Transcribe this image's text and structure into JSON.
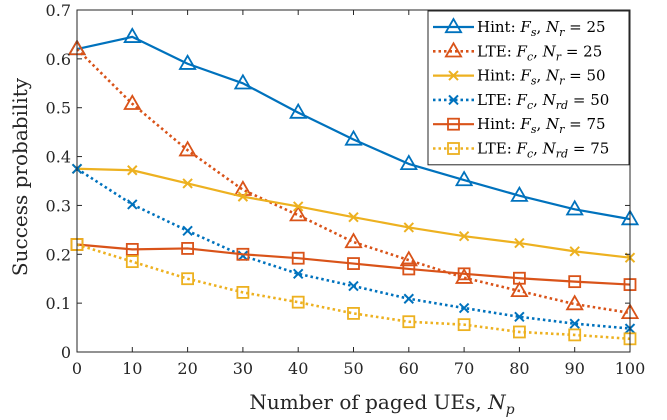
{
  "chart_data": {
    "type": "line",
    "xlabel": "Number of paged UEs, N_p",
    "ylabel": "Success probability",
    "xlim": [
      0,
      100
    ],
    "ylim": [
      0,
      0.7
    ],
    "x_ticks": [
      0,
      10,
      20,
      30,
      40,
      50,
      60,
      70,
      80,
      90,
      100
    ],
    "y_ticks": [
      0,
      0.1,
      0.2,
      0.3,
      0.4,
      0.5,
      0.6,
      0.7
    ],
    "grid": false,
    "legend_position": "top-right",
    "x": [
      0,
      10,
      20,
      30,
      40,
      50,
      60,
      70,
      80,
      90,
      100
    ],
    "series": [
      {
        "name": "Hint: F_s, N_r = 25",
        "color": "#0072bd",
        "line": "solid",
        "marker": "triangle",
        "values": [
          0.62,
          0.645,
          0.59,
          0.55,
          0.49,
          0.435,
          0.385,
          0.352,
          0.32,
          0.292,
          0.272
        ]
      },
      {
        "name": "LTE: F_c, N_r = 25",
        "color": "#d95319",
        "line": "dotted",
        "marker": "triangle",
        "values": [
          0.62,
          0.508,
          0.413,
          0.332,
          0.28,
          0.225,
          0.188,
          0.152,
          0.125,
          0.098,
          0.08
        ]
      },
      {
        "name": "Hint: F_s, N_r = 50",
        "color": "#edb120",
        "line": "solid",
        "marker": "x",
        "values": [
          0.375,
          0.372,
          0.345,
          0.318,
          0.298,
          0.276,
          0.255,
          0.237,
          0.223,
          0.206,
          0.193
        ]
      },
      {
        "name": "LTE: F_c, N_rd = 50",
        "color": "#0072bd",
        "line": "dotted",
        "marker": "x",
        "values": [
          0.375,
          0.302,
          0.248,
          0.197,
          0.16,
          0.135,
          0.109,
          0.09,
          0.072,
          0.058,
          0.048
        ]
      },
      {
        "name": "Hint: F_s, N_r = 75",
        "color": "#d95319",
        "line": "solid",
        "marker": "square",
        "values": [
          0.22,
          0.21,
          0.212,
          0.2,
          0.192,
          0.181,
          0.17,
          0.16,
          0.151,
          0.144,
          0.138
        ]
      },
      {
        "name": "LTE: F_c, N_rd = 75",
        "color": "#edb120",
        "line": "dotted",
        "marker": "square",
        "values": [
          0.22,
          0.185,
          0.15,
          0.122,
          0.102,
          0.079,
          0.062,
          0.056,
          0.041,
          0.035,
          0.027
        ]
      }
    ]
  },
  "legend": [
    {
      "prefix": "Hint: ",
      "v1": "F",
      "v1sub": "s",
      "v2": "N",
      "v2sub": "r",
      "value": " = 25"
    },
    {
      "prefix": "LTE: ",
      "v1": "F",
      "v1sub": "c",
      "v2": "N",
      "v2sub": "r",
      "value": " = 25"
    },
    {
      "prefix": "Hint: ",
      "v1": "F",
      "v1sub": "s",
      "v2": "N",
      "v2sub": "r",
      "value": " = 50"
    },
    {
      "prefix": "LTE: ",
      "v1": "F",
      "v1sub": "c",
      "v2": "N",
      "v2sub": "rd",
      "value": " = 50"
    },
    {
      "prefix": "Hint: ",
      "v1": "F",
      "v1sub": "s",
      "v2": "N",
      "v2sub": "r",
      "value": " = 75"
    },
    {
      "prefix": "LTE: ",
      "v1": "F",
      "v1sub": "c",
      "v2": "N",
      "v2sub": "rd",
      "value": " = 75"
    }
  ],
  "axes": {
    "xlabel_text": "Number of paged UEs, ",
    "xlabel_var": "N",
    "xlabel_sub": "p",
    "ylabel_text": "Success probability"
  }
}
